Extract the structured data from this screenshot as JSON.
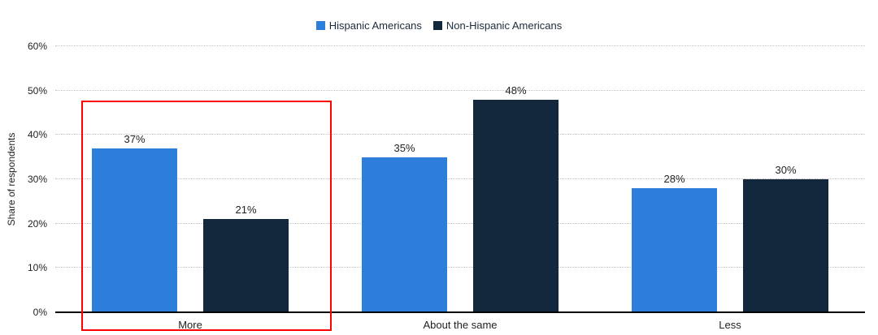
{
  "chart_data": {
    "type": "bar",
    "title": "",
    "categories": [
      "More",
      "About the same",
      "Less"
    ],
    "series": [
      {
        "name": "Hispanic Americans",
        "color": "#2d7ddb",
        "values": [
          37,
          35,
          28
        ],
        "labels": [
          "37%",
          "35%",
          "28%"
        ]
      },
      {
        "name": "Non-Hispanic Americans",
        "color": "#14283d",
        "values": [
          21,
          48,
          30
        ],
        "labels": [
          "21%",
          "48%",
          "30%"
        ]
      }
    ],
    "xlabel": "",
    "ylabel": "Share of respondents",
    "ylim": [
      0,
      60
    ],
    "y_ticks": [
      "0%",
      "10%",
      "20%",
      "30%",
      "40%",
      "50%",
      "60%"
    ],
    "grid": "horizontal-dotted",
    "legend_position": "top-center",
    "data_labels": true
  },
  "annotation": {
    "type": "highlight-rectangle",
    "target_category": "More",
    "color": "#ff0000"
  }
}
